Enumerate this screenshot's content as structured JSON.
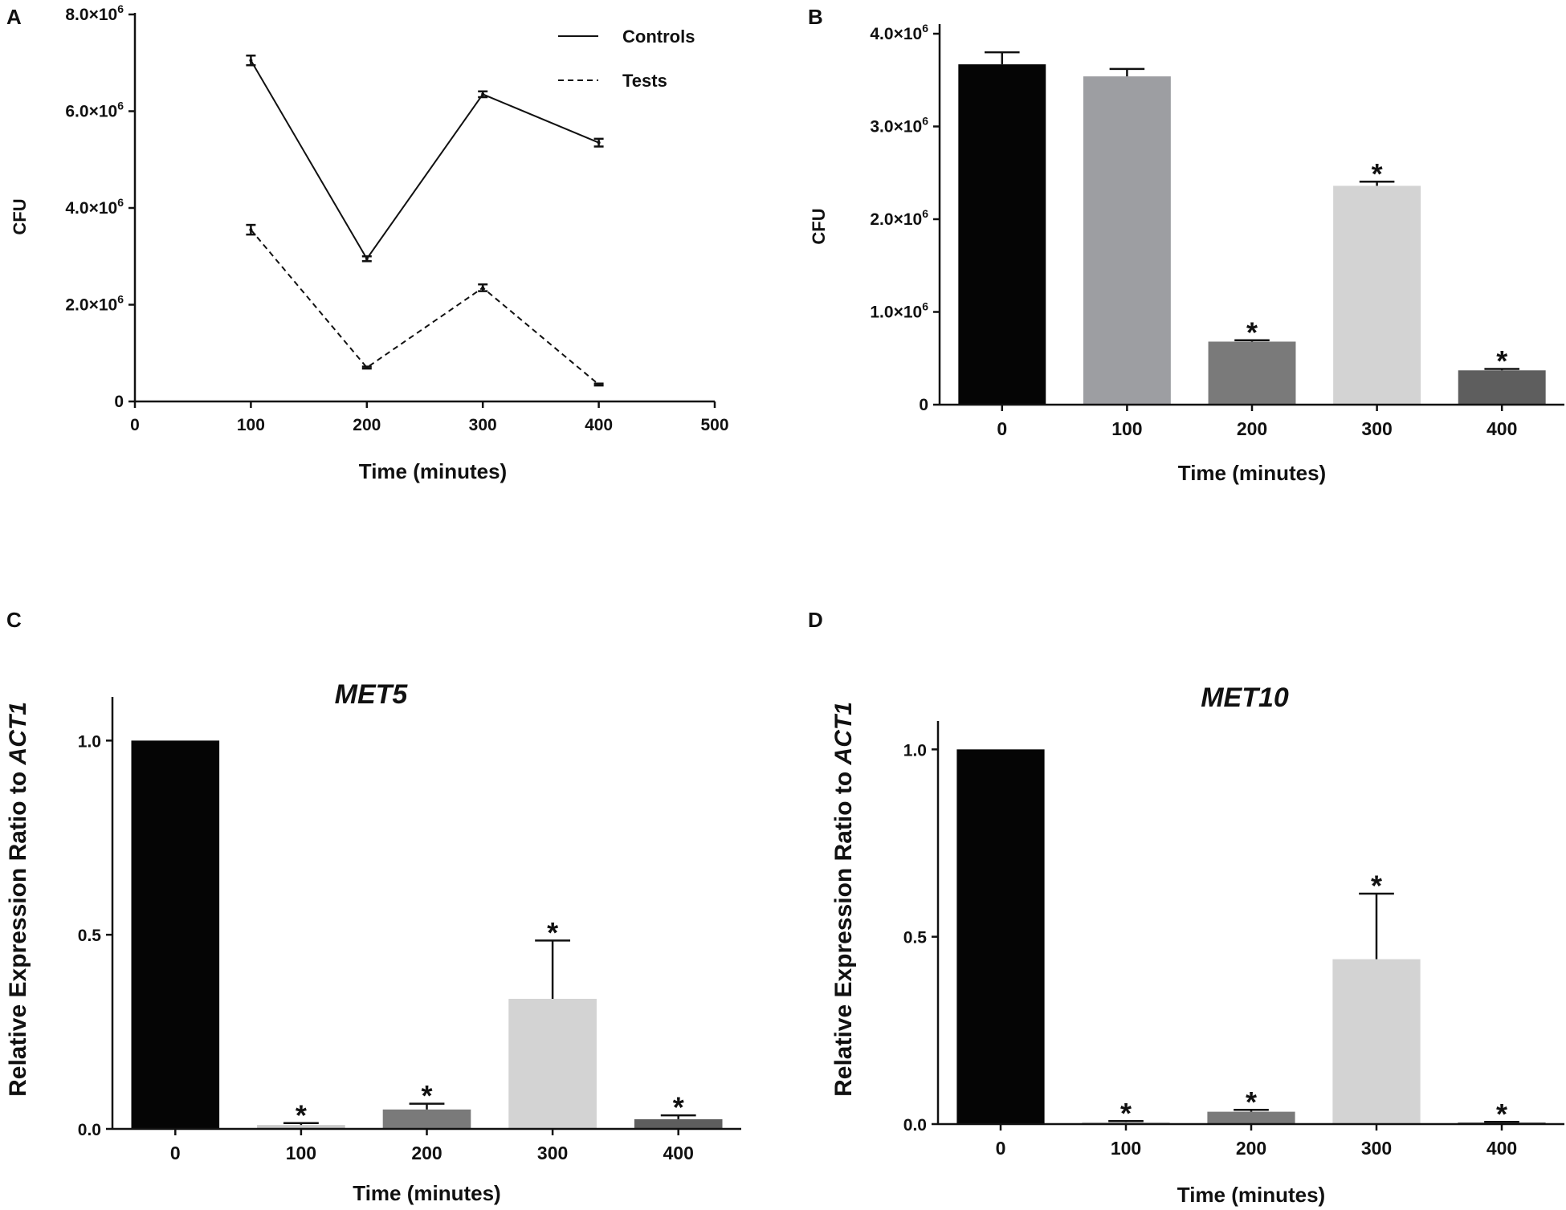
{
  "chart_data": [
    {
      "panel": "A",
      "type": "line",
      "title": "",
      "xlabel": "Time (minutes)",
      "ylabel": "CFU",
      "xlim": [
        0,
        500
      ],
      "ylim": [
        0,
        8000000
      ],
      "x_ticks": [
        0,
        100,
        200,
        300,
        400,
        500
      ],
      "x_tick_labels": [
        "0",
        "100",
        "200",
        "300",
        "400",
        "500"
      ],
      "y_ticks": [
        0,
        2000000,
        4000000,
        6000000,
        8000000
      ],
      "y_tick_labels": [
        {
          "mantissa": "0",
          "exp": ""
        },
        {
          "mantissa": "2.0×10",
          "exp": "6"
        },
        {
          "mantissa": "4.0×10",
          "exp": "6"
        },
        {
          "mantissa": "6.0×10",
          "exp": "6"
        },
        {
          "mantissa": "8.0×10",
          "exp": "6"
        }
      ],
      "legend_position": "top-right",
      "series": [
        {
          "name": "Controls",
          "style": "solid",
          "x": [
            100,
            200,
            300,
            400
          ],
          "y": [
            7050000,
            2950000,
            6350000,
            5350000
          ],
          "err": [
            100000,
            50000,
            60000,
            80000
          ]
        },
        {
          "name": "Tests",
          "style": "dashed",
          "x": [
            100,
            200,
            300,
            400
          ],
          "y": [
            3550000,
            700000,
            2350000,
            350000
          ],
          "err": [
            100000,
            20000,
            70000,
            20000
          ]
        }
      ]
    },
    {
      "panel": "B",
      "type": "bar",
      "title": "",
      "xlabel": "Time (minutes)",
      "ylabel": "CFU",
      "ylim": [
        0,
        4000000
      ],
      "categories": [
        "0",
        "100",
        "200",
        "300",
        "400"
      ],
      "values": [
        3670000,
        3540000,
        680000,
        2360000,
        370000
      ],
      "err": [
        130000,
        80000,
        15000,
        45000,
        15000
      ],
      "bar_colors": [
        "#050505",
        "#9d9ea2",
        "#7a7a7a",
        "#d3d3d3",
        "#5e5e5e"
      ],
      "significance": [
        "",
        "",
        "*",
        "*",
        "*"
      ],
      "y_ticks": [
        0,
        1000000,
        2000000,
        3000000,
        4000000
      ],
      "y_tick_labels": [
        {
          "mantissa": "0",
          "exp": ""
        },
        {
          "mantissa": "1.0×10",
          "exp": "6"
        },
        {
          "mantissa": "2.0×10",
          "exp": "6"
        },
        {
          "mantissa": "3.0×10",
          "exp": "6"
        },
        {
          "mantissa": "4.0×10",
          "exp": "6"
        }
      ]
    },
    {
      "panel": "C",
      "type": "bar",
      "title": "MET5",
      "xlabel": "Time (minutes)",
      "ylabel_prefix": "Relative Expression Ratio to ",
      "ylabel_gene": "ACT1",
      "ylim": [
        0,
        1.1
      ],
      "categories": [
        "0",
        "100",
        "200",
        "300",
        "400"
      ],
      "values": [
        1.0,
        0.01,
        0.05,
        0.335,
        0.025
      ],
      "err": [
        0.0,
        0.005,
        0.015,
        0.15,
        0.01
      ],
      "bar_colors": [
        "#050505",
        "#c9c9c9",
        "#7a7a7a",
        "#d3d3d3",
        "#5e5e5e"
      ],
      "significance": [
        "",
        "*",
        "*",
        "*",
        "*"
      ],
      "y_ticks": [
        0,
        0.5,
        1.0
      ],
      "y_tick_labels": [
        "0.0",
        "0.5",
        "1.0"
      ]
    },
    {
      "panel": "D",
      "type": "bar",
      "title": "MET10",
      "xlabel": "Time (minutes)",
      "ylabel_prefix": "Relative Expression Ratio to ",
      "ylabel_gene": "ACT1",
      "ylim": [
        0,
        1.05
      ],
      "categories": [
        "0",
        "100",
        "200",
        "300",
        "400"
      ],
      "values": [
        1.0,
        0.005,
        0.033,
        0.44,
        0.004
      ],
      "err": [
        0.0,
        0.003,
        0.005,
        0.175,
        0.002
      ],
      "bar_colors": [
        "#050505",
        "#c9c9c9",
        "#7a7a7a",
        "#d3d3d3",
        "#5e5e5e"
      ],
      "significance": [
        "",
        "*",
        "*",
        "*",
        "*"
      ],
      "y_ticks": [
        0,
        0.5,
        1.0
      ],
      "y_tick_labels": [
        "0.0",
        "0.5",
        "1.0"
      ]
    }
  ]
}
